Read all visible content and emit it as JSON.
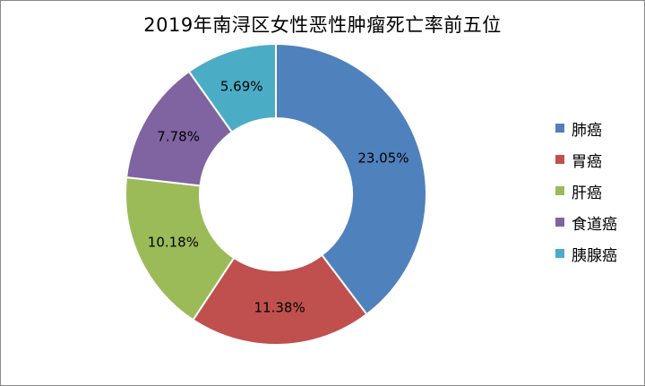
{
  "chart_data": {
    "type": "pie",
    "title": "2019年南浔区女性恶性肿瘤死亡率前五位",
    "donut": true,
    "legend_position": "right",
    "slices": [
      {
        "label": "肺癌",
        "value": 23.05,
        "display": "23.05%",
        "color": "#4F81BD"
      },
      {
        "label": "胃癌",
        "value": 11.38,
        "display": "11.38%",
        "color": "#C0504D"
      },
      {
        "label": "肝癌",
        "value": 10.18,
        "display": "10.18%",
        "color": "#9BBB59"
      },
      {
        "label": "食道癌",
        "value": 7.78,
        "display": "7.78%",
        "color": "#8064A2"
      },
      {
        "label": "胰腺癌",
        "value": 5.69,
        "display": "5.69%",
        "color": "#4BACC6"
      }
    ]
  }
}
